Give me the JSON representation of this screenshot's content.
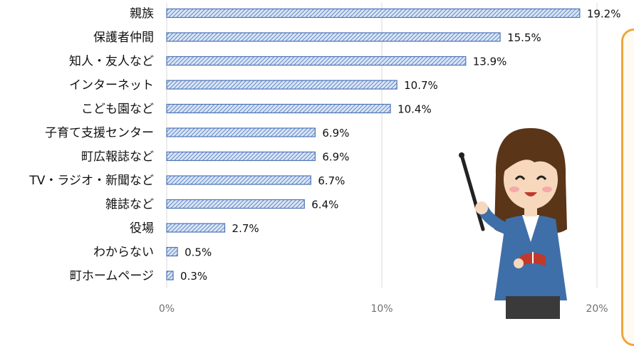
{
  "chart_data": {
    "type": "bar",
    "orientation": "horizontal",
    "categories": [
      "親族",
      "保護者仲間",
      "知人・友人など",
      "インターネット",
      "こども園など",
      "子育て支援センター",
      "町広報誌など",
      "TV・ラジオ・新聞など",
      "雑誌など",
      "役場",
      "わからない",
      "町ホームページ"
    ],
    "values": [
      19.2,
      15.5,
      13.9,
      10.7,
      10.4,
      6.9,
      6.9,
      6.7,
      6.4,
      2.7,
      0.5,
      0.3
    ],
    "value_labels": [
      "19.2%",
      "15.5%",
      "13.9%",
      "10.7%",
      "10.4%",
      "6.9%",
      "6.9%",
      "6.7%",
      "6.4%",
      "2.7%",
      "0.5%",
      "0.3%"
    ],
    "x_ticks": [
      0,
      10,
      20
    ],
    "x_tick_labels": [
      "0%",
      "10%",
      "20%"
    ],
    "xlim": [
      0,
      20
    ],
    "title": "",
    "xlabel": "",
    "ylabel": "",
    "grid": true,
    "legend": "none",
    "bar_fill": "hatched",
    "bar_color": "#7da2d6",
    "bar_border": "#4e74b8"
  },
  "decoration": {
    "illustration": "teacher-with-pointer-icon",
    "callout_color": "#f0a53a"
  }
}
